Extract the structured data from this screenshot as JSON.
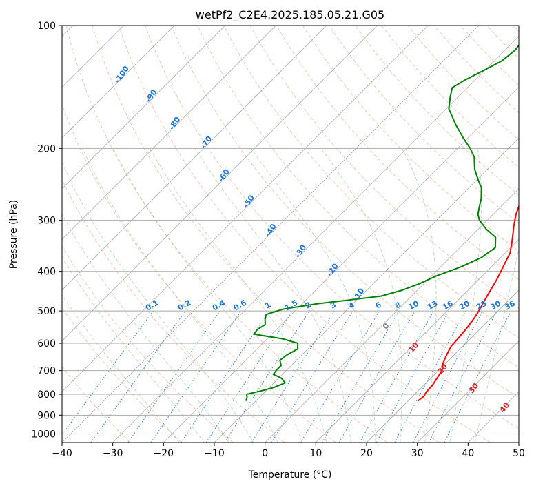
{
  "chart_data": {
    "type": "line",
    "title": "wetPf2_C2E4.2025.185.05.21.G05",
    "xlabel": "Temperature (°C)",
    "ylabel": "Pressure (hPa)",
    "xlim": [
      -40,
      50
    ],
    "ylim": [
      1050,
      100
    ],
    "y_scale": "log",
    "x_ticks": [
      -40,
      -30,
      -20,
      -10,
      0,
      10,
      20,
      30,
      40,
      50
    ],
    "x_tick_labels": [
      "−40",
      "−30",
      "−20",
      "−10",
      "0",
      "10",
      "20",
      "30",
      "40",
      "50"
    ],
    "y_ticks": [
      100,
      200,
      300,
      400,
      500,
      600,
      700,
      800,
      900,
      1000
    ],
    "y_tick_labels": [
      "100",
      "200",
      "300",
      "400",
      "500",
      "600",
      "700",
      "800",
      "900",
      "1000"
    ],
    "grid": true,
    "series": [
      {
        "color": "#ff0000",
        "points": [
          [
            830,
            21.9
          ],
          [
            810,
            22.2
          ],
          [
            790,
            21.8
          ],
          [
            760,
            21.7
          ],
          [
            730,
            21.2
          ],
          [
            700,
            20.7
          ],
          [
            670,
            19.4
          ],
          [
            640,
            18.5
          ],
          [
            610,
            17.7
          ],
          [
            580,
            17.5
          ],
          [
            550,
            17.2
          ],
          [
            520,
            16.7
          ],
          [
            500,
            16.2
          ],
          [
            460,
            14.9
          ],
          [
            420,
            13.6
          ],
          [
            390,
            12.3
          ],
          [
            360,
            10.9
          ],
          [
            335,
            8.8
          ],
          [
            310,
            6.4
          ],
          [
            290,
            4.5
          ],
          [
            270,
            2.9
          ],
          [
            250,
            1.3
          ],
          [
            230,
            0.2
          ],
          [
            210,
            -0.1
          ],
          [
            195,
            0.7
          ],
          [
            180,
            2.3
          ],
          [
            165,
            4.5
          ],
          [
            150,
            6.8
          ],
          [
            140,
            8.2
          ],
          [
            130,
            9.3
          ],
          [
            120,
            10.1
          ],
          [
            112,
            10.6
          ],
          [
            105,
            10.9
          ],
          [
            100,
            11.3
          ]
        ]
      },
      {
        "color": "#008000",
        "points": [
          [
            830,
            -12.0
          ],
          [
            815,
            -12.4
          ],
          [
            800,
            -13.1
          ],
          [
            785,
            -11.0
          ],
          [
            770,
            -9.1
          ],
          [
            750,
            -7.8
          ],
          [
            730,
            -9.5
          ],
          [
            715,
            -11.8
          ],
          [
            700,
            -12.0
          ],
          [
            680,
            -12.0
          ],
          [
            660,
            -13.3
          ],
          [
            640,
            -12.9
          ],
          [
            620,
            -12.0
          ],
          [
            600,
            -13.1
          ],
          [
            585,
            -17.0
          ],
          [
            570,
            -23.5
          ],
          [
            555,
            -23.8
          ],
          [
            540,
            -23.2
          ],
          [
            525,
            -24.2
          ],
          [
            510,
            -25.0
          ],
          [
            495,
            -22.7
          ],
          [
            480,
            -17.0
          ],
          [
            470,
            -11.5
          ],
          [
            460,
            -6.0
          ],
          [
            445,
            -3.0
          ],
          [
            430,
            -1.0
          ],
          [
            410,
            1.0
          ],
          [
            390,
            4.0
          ],
          [
            370,
            6.2
          ],
          [
            350,
            7.0
          ],
          [
            330,
            5.0
          ],
          [
            315,
            1.5
          ],
          [
            300,
            -1.5
          ],
          [
            290,
            -3.0
          ],
          [
            280,
            -4.0
          ],
          [
            265,
            -5.5
          ],
          [
            250,
            -7.5
          ],
          [
            240,
            -9.5
          ],
          [
            225,
            -12.5
          ],
          [
            210,
            -15.0
          ],
          [
            200,
            -17.5
          ],
          [
            190,
            -20.5
          ],
          [
            175,
            -25.0
          ],
          [
            160,
            -29.5
          ],
          [
            150,
            -31.5
          ],
          [
            142,
            -33.0
          ],
          [
            136,
            -32.0
          ],
          [
            130,
            -30.5
          ],
          [
            122,
            -28.5
          ],
          [
            115,
            -28.0
          ],
          [
            108,
            -28.5
          ],
          [
            100,
            -29.5
          ]
        ]
      }
    ],
    "mixing_ratio_labels": [
      "0.1",
      "0.2",
      "0.4",
      "0.6",
      "1",
      "1.5",
      "2",
      "3",
      "4",
      "6",
      "8",
      "10",
      "13",
      "16",
      "20",
      "25",
      "30",
      "36"
    ],
    "dry_adiabat_labels": [
      "-100",
      "-90",
      "-80",
      "-70",
      "-60",
      "-50",
      "-40",
      "-30",
      "-20",
      "-10"
    ],
    "moist_adiabat_labels": [
      "0",
      "10",
      "20",
      "30",
      "40"
    ]
  }
}
